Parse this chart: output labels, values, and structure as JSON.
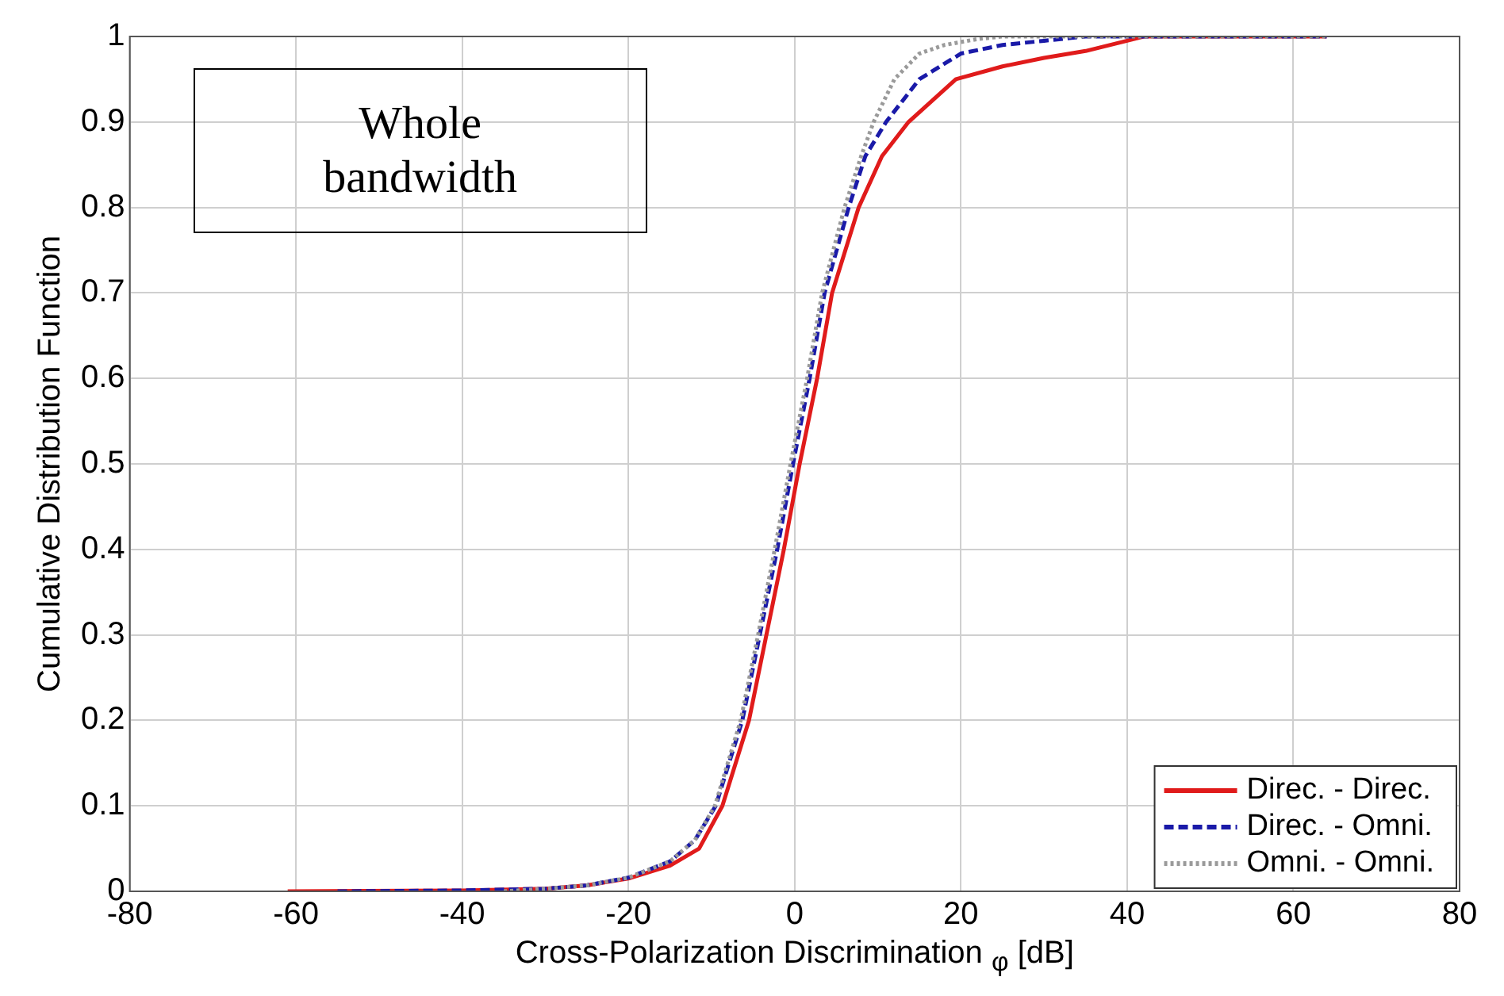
{
  "chart_data": {
    "type": "line",
    "xlabel": "Cross-Polarization Discrimination $_{φ}$ [dB]",
    "ylabel": "Cumulative Distribution Function",
    "annotations": [
      "Whole bandwidth"
    ],
    "xlim": [
      -80,
      80
    ],
    "xticks": [
      -80,
      -60,
      -40,
      -20,
      0,
      20,
      40,
      60,
      80
    ],
    "ylim": [
      0,
      1
    ],
    "yticks": [
      0,
      0.1,
      0.2,
      0.3,
      0.4,
      0.5,
      0.6,
      0.7,
      0.8,
      0.9,
      1
    ],
    "grid": true,
    "legend": "bottom right",
    "marker": "none",
    "series": [
      {
        "name": "Direc. - Direc.",
        "color": "#e01b1b",
        "line_style": "solid",
        "x": [
          -61,
          -40,
          -30,
          -25,
          -20,
          -15,
          -11.5,
          -8.7,
          -5.5,
          -3.4,
          -1.3,
          0.6,
          2.7,
          4.5,
          7.7,
          10.5,
          13.7,
          19.4,
          25,
          30,
          35,
          40,
          42,
          50,
          64
        ],
        "values": [
          0,
          0.001,
          0.003,
          0.007,
          0.015,
          0.03,
          0.05,
          0.1,
          0.2,
          0.3,
          0.4,
          0.5,
          0.6,
          0.7,
          0.8,
          0.86,
          0.9,
          0.95,
          0.965,
          0.975,
          0.983,
          0.995,
          1,
          1,
          1
        ]
      },
      {
        "name": "Direc. - Omni.",
        "color": "#1a1aa8",
        "line_style": "dashed",
        "x": [
          -55,
          -40,
          -30,
          -25,
          -20,
          -15,
          -12,
          -9.5,
          -6.3,
          -4.2,
          -2.1,
          -0.2,
          1.8,
          3.6,
          6.5,
          8.5,
          11,
          15,
          20,
          25,
          30,
          35,
          50,
          64
        ],
        "values": [
          0,
          0.001,
          0.003,
          0.007,
          0.016,
          0.035,
          0.06,
          0.1,
          0.2,
          0.3,
          0.4,
          0.5,
          0.6,
          0.7,
          0.8,
          0.86,
          0.9,
          0.95,
          0.98,
          0.99,
          0.995,
          1,
          1,
          1
        ]
      },
      {
        "name": "Omni. - Omni.",
        "color": "#9a9a9a",
        "line_style": "dotted",
        "x": [
          -35,
          -30,
          -25,
          -20,
          -15,
          -12,
          -9.6,
          -6.5,
          -4.4,
          -2.4,
          -0.5,
          1.5,
          3.3,
          6,
          8,
          9.5,
          12,
          15,
          18,
          22,
          25,
          40,
          64
        ],
        "values": [
          0,
          0.003,
          0.007,
          0.016,
          0.035,
          0.06,
          0.1,
          0.2,
          0.3,
          0.4,
          0.5,
          0.6,
          0.7,
          0.8,
          0.86,
          0.9,
          0.95,
          0.98,
          0.99,
          0.997,
          1,
          1,
          1
        ]
      }
    ]
  }
}
